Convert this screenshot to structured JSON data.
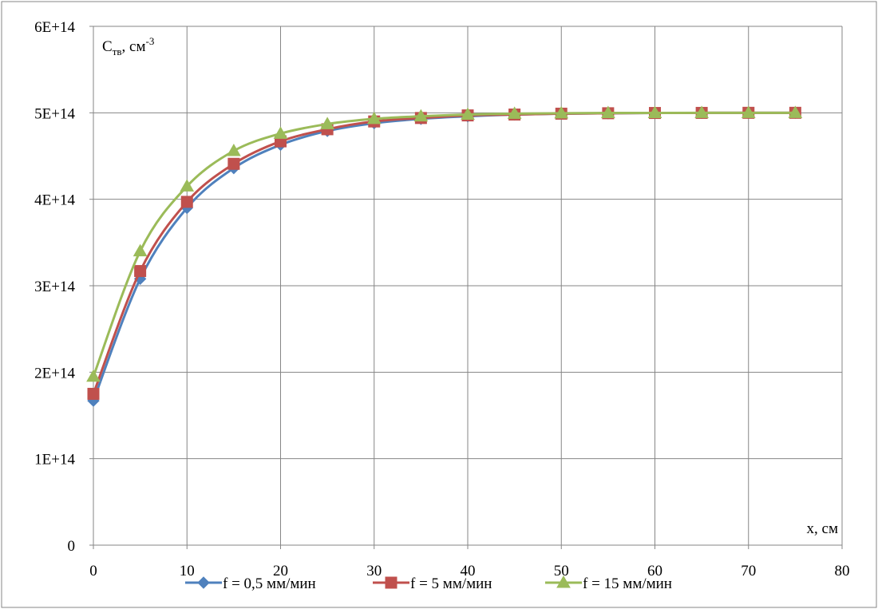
{
  "chart_data": {
    "type": "line",
    "ylabel": {
      "main": "C",
      "sub": "тв",
      "rest": ", см",
      "sup": "-3"
    },
    "xlabel": "x, см",
    "xlim": [
      0,
      80
    ],
    "ylim": [
      0,
      600000000000000.0
    ],
    "x_ticks": [
      "0",
      "10",
      "20",
      "30",
      "40",
      "50",
      "60",
      "70",
      "80"
    ],
    "y_ticks": [
      "0",
      "1E+14",
      "2E+14",
      "3E+14",
      "4E+14",
      "5E+14",
      "6E+14"
    ],
    "grid": true,
    "legend_position": "bottom",
    "x": [
      0,
      5,
      10,
      15,
      20,
      25,
      30,
      35,
      40,
      45,
      50,
      55,
      60,
      65,
      70,
      75
    ],
    "series": [
      {
        "name": "f = 0,5 мм/мин",
        "color": "#4f81bd",
        "marker": "diamond",
        "values": [
          167000000000000.0,
          308000000000000.0,
          390000000000000.0,
          436000000000000.0,
          463000000000000.0,
          479000000000000.0,
          488000000000000.0,
          493000000000000.0,
          496000000000000.0,
          498000000000000.0,
          499000000000000.0,
          499500000000000.0,
          499800000000000.0,
          499900000000000.0,
          500000000000000.0,
          500000000000000.0
        ]
      },
      {
        "name": "f = 5 мм/мин",
        "color": "#c0504d",
        "marker": "square",
        "values": [
          175000000000000.0,
          317000000000000.0,
          397000000000000.0,
          441000000000000.0,
          467000000000000.0,
          481000000000000.0,
          490000000000000.0,
          494000000000000.0,
          497000000000000.0,
          498000000000000.0,
          499000000000000.0,
          499500000000000.0,
          499800000000000.0,
          499900000000000.0,
          500000000000000.0,
          500000000000000.0
        ]
      },
      {
        "name": "f = 15 мм/мин",
        "color": "#9bbb59",
        "marker": "triangle",
        "values": [
          195000000000000.0,
          340000000000000.0,
          415000000000000.0,
          456000000000000.0,
          476000000000000.0,
          487000000000000.0,
          493000000000000.0,
          496000000000000.0,
          498000000000000.0,
          499000000000000.0,
          499500000000000.0,
          499800000000000.0,
          499900000000000.0,
          500000000000000.0,
          500000000000000.0,
          500000000000000.0
        ]
      }
    ]
  }
}
